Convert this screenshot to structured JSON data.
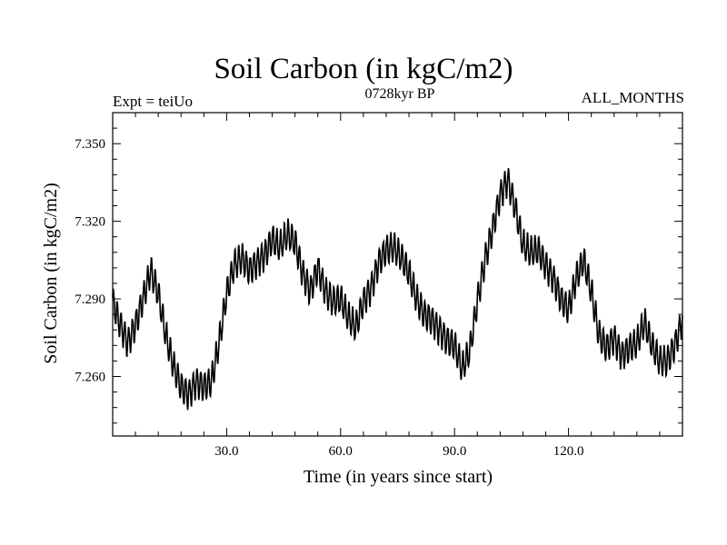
{
  "chart_data": {
    "type": "line",
    "title": "Soil Carbon (in kgC/m2)",
    "subtitle": "0728kyr BP",
    "expt_label": "Expt = teiUo",
    "period_label": "ALL_MONTHS",
    "xlabel": "Time (in years since start)",
    "ylabel": "Soil Carbon (in kgC/m2)",
    "xlim": [
      0,
      150
    ],
    "ylim": [
      7.237,
      7.362
    ],
    "x_ticks": [
      30,
      60,
      90,
      120
    ],
    "x_tick_labels": [
      "30.0",
      "60.0",
      "90.0",
      "120.0"
    ],
    "y_ticks": [
      7.26,
      7.29,
      7.32,
      7.35
    ],
    "y_tick_labels": [
      "7.260",
      "7.290",
      "7.320",
      "7.350"
    ],
    "grid": false,
    "seasonal_cycle_amplitude": 0.0055,
    "series": [
      {
        "name": "Soil Carbon",
        "x": [
          0,
          2,
          4,
          6,
          8,
          10,
          12,
          14,
          16,
          18,
          20,
          22,
          24,
          26,
          28,
          30,
          32,
          34,
          36,
          38,
          40,
          42,
          44,
          46,
          48,
          50,
          52,
          54,
          56,
          58,
          60,
          62,
          64,
          66,
          68,
          70,
          72,
          74,
          76,
          78,
          80,
          82,
          84,
          86,
          88,
          90,
          92,
          94,
          96,
          98,
          100,
          102,
          104,
          106,
          108,
          110,
          112,
          114,
          116,
          118,
          120,
          122,
          124,
          126,
          128,
          130,
          132,
          134,
          136,
          138,
          140,
          142,
          144,
          146,
          148,
          150
        ],
        "values": [
          7.289,
          7.28,
          7.273,
          7.28,
          7.29,
          7.301,
          7.292,
          7.276,
          7.264,
          7.256,
          7.253,
          7.258,
          7.256,
          7.258,
          7.273,
          7.292,
          7.303,
          7.306,
          7.301,
          7.304,
          7.307,
          7.313,
          7.31,
          7.315,
          7.312,
          7.3,
          7.293,
          7.302,
          7.293,
          7.289,
          7.29,
          7.283,
          7.279,
          7.289,
          7.294,
          7.304,
          7.309,
          7.31,
          7.306,
          7.3,
          7.29,
          7.284,
          7.282,
          7.278,
          7.274,
          7.272,
          7.263,
          7.27,
          7.289,
          7.305,
          7.317,
          7.33,
          7.336,
          7.325,
          7.311,
          7.308,
          7.309,
          7.303,
          7.298,
          7.29,
          7.286,
          7.298,
          7.305,
          7.293,
          7.276,
          7.271,
          7.275,
          7.268,
          7.271,
          7.273,
          7.281,
          7.272,
          7.266,
          7.266,
          7.272,
          7.282
        ]
      }
    ]
  }
}
